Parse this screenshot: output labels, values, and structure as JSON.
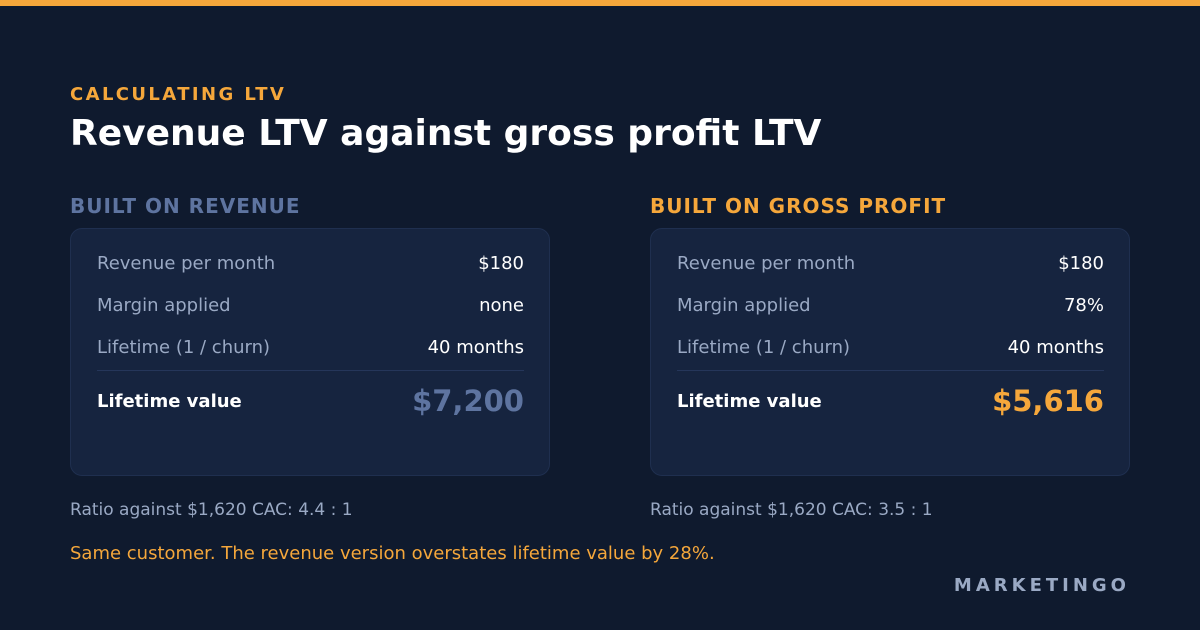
{
  "colors": {
    "background": "#0f1a2e",
    "card": "#16243f",
    "accent": "#f5a73b",
    "muted_blue": "#5e74a0",
    "text_muted": "#9aa9c4",
    "text": "#ffffff"
  },
  "eyebrow": "CALCULATING LTV",
  "title": "Revenue LTV against gross profit LTV",
  "columns": [
    {
      "heading": "BUILT ON REVENUE",
      "rows": [
        {
          "label": "Revenue per month",
          "value": "$180"
        },
        {
          "label": "Margin applied",
          "value": "none"
        },
        {
          "label": "Lifetime (1 / churn)",
          "value": "40 months"
        }
      ],
      "ltv_label": "Lifetime value",
      "ltv_value": "$7,200",
      "ratio": "Ratio against $1,620 CAC: 4.4 : 1"
    },
    {
      "heading": "BUILT ON GROSS PROFIT",
      "rows": [
        {
          "label": "Revenue per month",
          "value": "$180"
        },
        {
          "label": "Margin applied",
          "value": "78%"
        },
        {
          "label": "Lifetime (1 / churn)",
          "value": "40 months"
        }
      ],
      "ltv_label": "Lifetime value",
      "ltv_value": "$5,616",
      "ratio": "Ratio against $1,620 CAC: 3.5 : 1"
    }
  ],
  "footnote": "Same customer. The revenue version overstates lifetime value by 28%.",
  "brand": "MARKETINGO"
}
